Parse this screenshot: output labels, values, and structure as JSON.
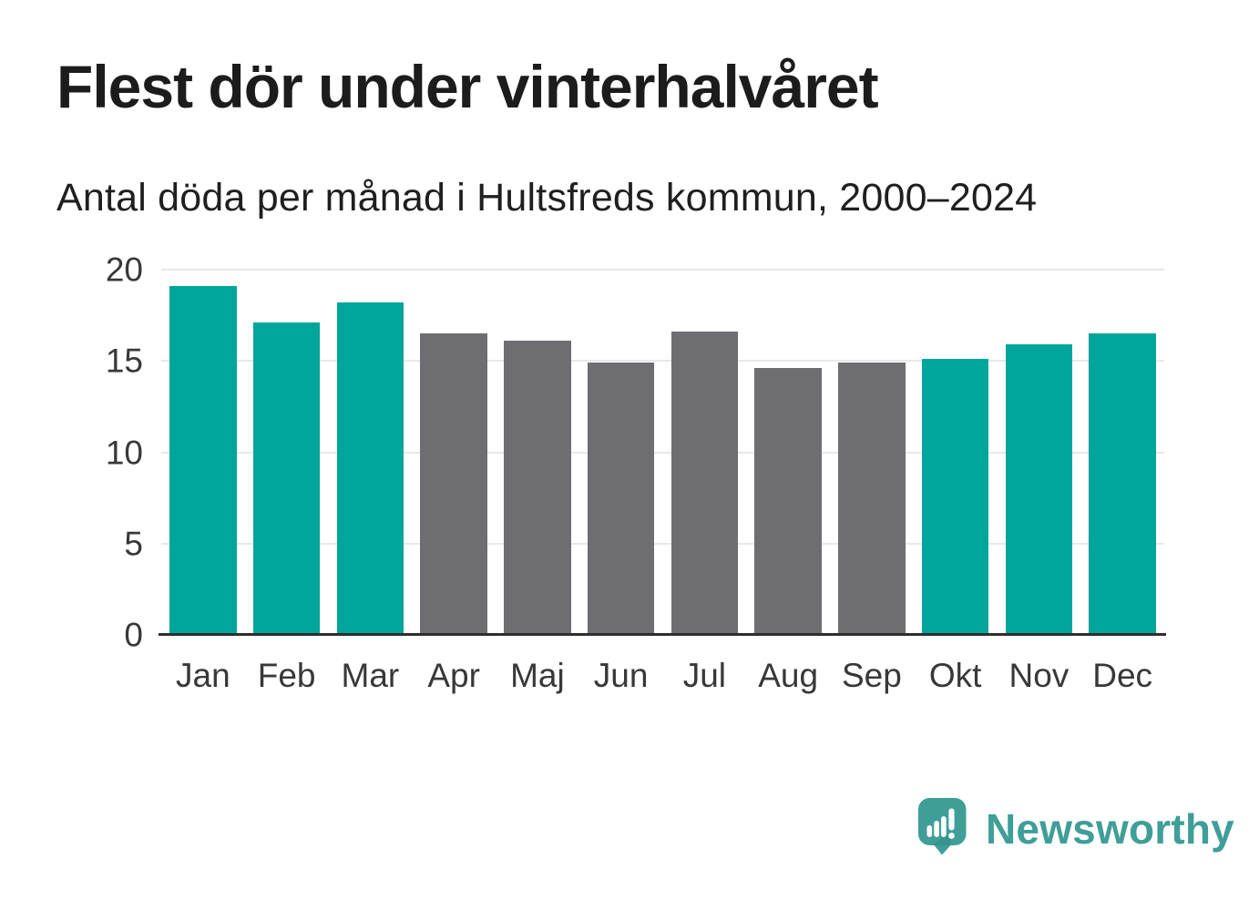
{
  "chart_data": {
    "type": "bar",
    "title": "Flest dör under vinterhalvåret",
    "subtitle": "Antal döda per månad i Hultsfreds kommun, 2000–2024",
    "categories": [
      "Jan",
      "Feb",
      "Mar",
      "Apr",
      "Maj",
      "Jun",
      "Jul",
      "Aug",
      "Sep",
      "Okt",
      "Nov",
      "Dec"
    ],
    "values": [
      19.1,
      17.1,
      18.2,
      16.5,
      16.1,
      14.9,
      16.6,
      14.6,
      14.9,
      15.1,
      15.9,
      16.5
    ],
    "bar_seasons": [
      "winter",
      "winter",
      "winter",
      "summer",
      "summer",
      "summer",
      "summer",
      "summer",
      "summer",
      "winter",
      "winter",
      "winter"
    ],
    "palette": {
      "winter": "#00a59b",
      "summer": "#6d6d72"
    },
    "xlabel": "",
    "ylabel": "",
    "ylim": [
      0,
      20
    ],
    "yticks": [
      0,
      5,
      10,
      15,
      20
    ],
    "grid": true,
    "legend": "none"
  },
  "branding": {
    "logo_text": "Newsworthy",
    "logo_color": "#3f9e98",
    "logo_icon": "newsworthy-speech-bubble-bar-chart-icon"
  },
  "style_colors": {
    "background": "#ffffff",
    "title_text": "#1c1c1c",
    "axis_label_text": "#383838",
    "gridline": "#e8e8e8",
    "axis_baseline": "#2e2e2e"
  }
}
